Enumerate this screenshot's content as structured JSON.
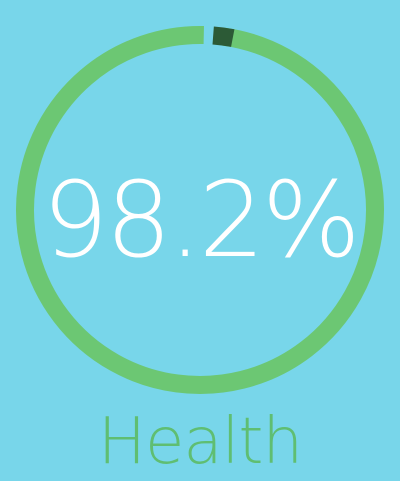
{
  "gauge": {
    "value_text": "98.2%",
    "fraction": 0.982,
    "label": "Health",
    "colors": {
      "background": "#78d6ea",
      "ring": "#6cc773",
      "ring_dark": "#5bb966",
      "gap_marker": "#2c5a36",
      "text": "#ffffff",
      "label": "#5fbe72"
    }
  }
}
